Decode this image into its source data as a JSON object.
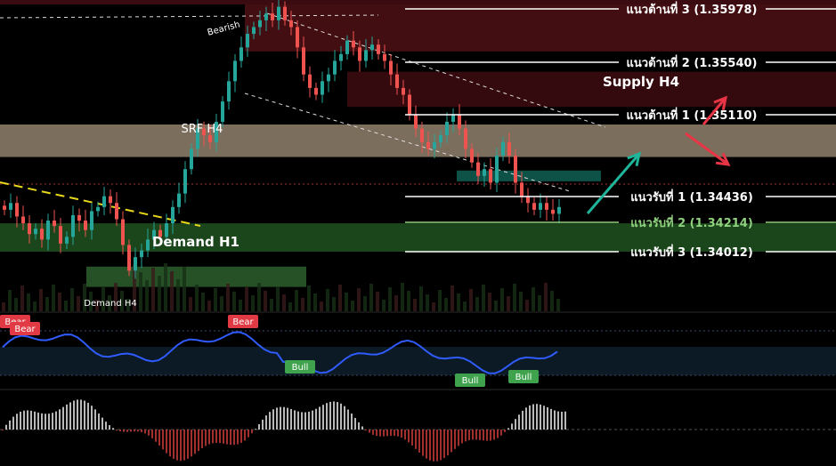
{
  "chart_data": {
    "type": "candlestick",
    "symbol_scale": "GBPUSD-style price (1.3380 – 1.3605)",
    "ylim": [
      1.3375,
      1.3605
    ],
    "levels": [
      {
        "key": "r3",
        "label": "แนวต้านที่ 3 (1.35978)",
        "value": 1.35978,
        "color": "#ffffff"
      },
      {
        "key": "r2",
        "label": "แนวต้านที่ 2 (1.35540)",
        "value": 1.3554,
        "color": "#ffffff"
      },
      {
        "key": "r1",
        "label": "แนวต้านที่ 1 (1.35110)",
        "value": 1.3511,
        "color": "#ffffff"
      },
      {
        "key": "s1",
        "label": "แนวรับที่ 1 (1.34436)",
        "value": 1.34436,
        "color": "#ffffff"
      },
      {
        "key": "s2",
        "label": "แนวรับที่ 2 (1.34214)",
        "value": 1.34214,
        "color": "#8fd17f"
      },
      {
        "key": "s3",
        "label": "แนวรับที่ 3 (1.34012)",
        "value": 1.34012,
        "color": "#ffffff"
      }
    ],
    "zones": [
      {
        "key": "supply-top",
        "value_range": [
          1.3567,
          1.3602
        ],
        "color": "#4a0f14"
      },
      {
        "key": "supply-h4",
        "value_range": [
          1.3526,
          1.3552
        ],
        "color": "#3a0b10",
        "label": "Supply H4"
      },
      {
        "key": "srf-h4",
        "value_range": [
          1.3489,
          1.3513
        ],
        "color": "#8a7a66",
        "label": "SRF H4"
      },
      {
        "key": "teal-zone",
        "value_range": [
          1.3471,
          1.3479
        ],
        "color": "#0f5a4f"
      },
      {
        "key": "green-zone",
        "value_range": [
          1.3419,
          1.344
        ],
        "color": "#1e4d1e"
      },
      {
        "key": "demand-h1",
        "value_range": [
          1.3393,
          1.3408
        ],
        "color": "#2a5a2a",
        "label": "Demand H1"
      },
      {
        "key": "demand-h4",
        "label": "Demand H4"
      }
    ],
    "annotations": {
      "bearish_label": "Bearish",
      "supply_label": "Supply H4",
      "srf_label": "SRF H4",
      "demand_h1_label": "Demand H1",
      "demand_h4_label": "Demand H4"
    },
    "candles_close": [
      1.345,
      1.3455,
      1.3445,
      1.344,
      1.3432,
      1.3436,
      1.3428,
      1.3442,
      1.3438,
      1.3425,
      1.343,
      1.3446,
      1.3442,
      1.3435,
      1.3449,
      1.3452,
      1.346,
      1.3455,
      1.3443,
      1.3424,
      1.3405,
      1.3415,
      1.342,
      1.3428,
      1.3435,
      1.343,
      1.344,
      1.3452,
      1.3462,
      1.348,
      1.3495,
      1.351,
      1.3505,
      1.35,
      1.3515,
      1.353,
      1.3545,
      1.356,
      1.357,
      1.358,
      1.3585,
      1.359,
      1.3595,
      1.359,
      1.36,
      1.359,
      1.3585,
      1.357,
      1.355,
      1.354,
      1.3535,
      1.3545,
      1.355,
      1.356,
      1.3565,
      1.3575,
      1.357,
      1.356,
      1.3568,
      1.3572,
      1.3565,
      1.356,
      1.355,
      1.354,
      1.3535,
      1.352,
      1.351,
      1.35,
      1.3495,
      1.35,
      1.3505,
      1.3515,
      1.352,
      1.351,
      1.3495,
      1.3485,
      1.3475,
      1.348,
      1.347,
      1.349,
      1.35,
      1.349,
      1.347,
      1.346,
      1.3455,
      1.345,
      1.3455,
      1.345,
      1.3447,
      1.3452
    ],
    "oscillator": {
      "labels": [
        {
          "text": "Bear",
          "type": "bear",
          "idx": 0
        },
        {
          "text": "Bear",
          "type": "bear",
          "idx": 2
        },
        {
          "text": "Bear",
          "type": "bear",
          "idx": 30
        },
        {
          "text": "Bull",
          "type": "bull",
          "idx": 40
        },
        {
          "text": "Bull",
          "type": "bull",
          "idx": 62
        },
        {
          "text": "Bull",
          "type": "bull",
          "idx": 73
        }
      ]
    },
    "colors": {
      "bull_candle": "#26a69a",
      "bear_candle": "#ef5350",
      "rsi_line": "#2f5bff",
      "trend_yellow": "#e8d81c",
      "arrow_green": "#1fb59a",
      "arrow_red": "#e83545"
    }
  }
}
